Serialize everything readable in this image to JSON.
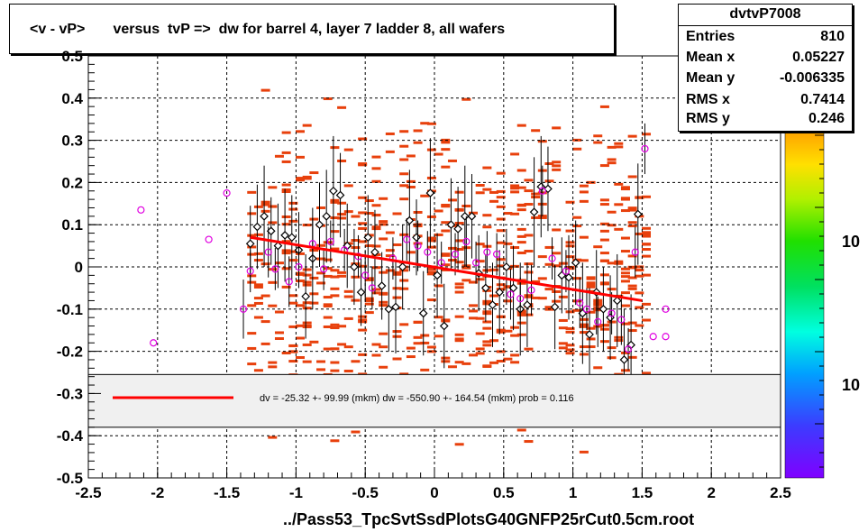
{
  "title": "<v - vP>       versus  tvP =>  dw for barrel 4, layer 7 ladder 8, all wafers",
  "stats": {
    "name": "dvtvP7008",
    "rows": [
      {
        "label": "Entries",
        "value": "810"
      },
      {
        "label": "Mean x",
        "value": "0.05227"
      },
      {
        "label": "Mean y",
        "value": "-0.006335"
      },
      {
        "label": "RMS x",
        "value": "0.7414"
      },
      {
        "label": "RMS y",
        "value": "0.246"
      }
    ]
  },
  "colors": {
    "hist": "#e8400c",
    "fit": "#ff0000",
    "profile_black": "#000000",
    "profile_magenta": "#e000e0",
    "legend_bg": "#f0f0f0"
  },
  "chart_data": {
    "type": "scatter",
    "xlabel": "../Pass53_TpcSvtSsdPlotsG40GNFP25rCut0.5cm.root",
    "ylabel": "",
    "xlim": [
      -2.5,
      2.5
    ],
    "ylim": [
      -0.5,
      0.5
    ],
    "x_ticks": [
      "-2.5",
      "-2",
      "-1.5",
      "-1",
      "-0.5",
      "0",
      "0.5",
      "1",
      "1.5",
      "2",
      "2.5"
    ],
    "y_ticks": [
      "-0.5",
      "-0.4",
      "-0.3",
      "-0.2",
      "-0.1",
      "0",
      "0.1",
      "0.2",
      "0.3",
      "0.4",
      "0.5"
    ],
    "grid": true,
    "z_labels": [
      "10",
      "10"
    ],
    "fit_line": {
      "x": [
        -1.33,
        1.5
      ],
      "y": [
        0.07,
        -0.08
      ]
    },
    "legend": {
      "text": "dv =  -25.32 +- 99.99 (mkm) dw = -550.90 +- 164.54 (mkm) prob = 0.116",
      "ylim": [
        -0.38,
        -0.255
      ]
    },
    "series": [
      {
        "name": "",
        "marker": "diamond",
        "color": "black",
        "points": [
          [
            -1.33,
            0.055,
            0.09
          ],
          [
            -1.28,
            0.095,
            0.1
          ],
          [
            -1.23,
            0.12,
            0.12
          ],
          [
            -1.18,
            0.085,
            0.08
          ],
          [
            -1.13,
            0.05,
            0.1
          ],
          [
            -1.08,
            0.075,
            0.11
          ],
          [
            -1.03,
            0.07,
            0.1
          ],
          [
            -0.98,
            0.04,
            0.09
          ],
          [
            -0.93,
            -0.07,
            0.1
          ],
          [
            -0.88,
            0.02,
            0.12
          ],
          [
            -0.83,
            0.1,
            0.1
          ],
          [
            -0.78,
            0.12,
            0.11
          ],
          [
            -0.73,
            0.18,
            0.13
          ],
          [
            -0.68,
            0.17,
            0.1
          ],
          [
            -0.63,
            0.05,
            0.1
          ],
          [
            -0.58,
            0.0,
            0.09
          ],
          [
            -0.53,
            -0.06,
            0.08
          ],
          [
            -0.48,
            0.07,
            0.1
          ],
          [
            -0.43,
            0.035,
            0.1
          ],
          [
            -0.38,
            -0.045,
            0.08
          ],
          [
            -0.33,
            -0.1,
            0.1
          ],
          [
            -0.28,
            -0.095,
            0.11
          ],
          [
            -0.23,
            0.0,
            0.1
          ],
          [
            -0.18,
            0.11,
            0.12
          ],
          [
            -0.13,
            0.07,
            0.09
          ],
          [
            -0.08,
            -0.11,
            0.1
          ],
          [
            -0.03,
            0.175,
            0.13
          ],
          [
            0.02,
            -0.02,
            0.1
          ],
          [
            0.07,
            -0.14,
            0.1
          ],
          [
            0.12,
            0.1,
            0.11
          ],
          [
            0.17,
            0.09,
            0.1
          ],
          [
            0.22,
            0.12,
            0.12
          ],
          [
            0.27,
            0.12,
            0.1
          ],
          [
            0.32,
            -0.015,
            0.09
          ],
          [
            0.37,
            -0.05,
            0.08
          ],
          [
            0.42,
            -0.09,
            0.1
          ],
          [
            0.47,
            -0.06,
            0.1
          ],
          [
            0.52,
            0.0,
            0.09
          ],
          [
            0.57,
            -0.05,
            0.1
          ],
          [
            0.62,
            -0.1,
            0.11
          ],
          [
            0.67,
            -0.09,
            0.1
          ],
          [
            0.72,
            0.13,
            0.13
          ],
          [
            0.77,
            0.19,
            0.12
          ],
          [
            0.82,
            0.185,
            0.1
          ],
          [
            0.87,
            -0.095,
            0.1
          ],
          [
            0.92,
            -0.02,
            0.09
          ],
          [
            0.97,
            -0.025,
            0.1
          ],
          [
            1.02,
            0.01,
            0.1
          ],
          [
            1.07,
            -0.11,
            0.12
          ],
          [
            1.12,
            -0.16,
            0.11
          ],
          [
            1.17,
            -0.06,
            0.1
          ],
          [
            1.22,
            -0.1,
            0.1
          ],
          [
            1.27,
            -0.12,
            0.1
          ],
          [
            1.32,
            -0.08,
            0.11
          ],
          [
            1.37,
            -0.22,
            0.12
          ],
          [
            1.42,
            -0.185,
            0.12
          ],
          [
            1.47,
            0.125,
            0.12
          ]
        ]
      },
      {
        "name": "",
        "marker": "circle",
        "color": "magenta",
        "points": [
          [
            -2.12,
            0.135,
            0
          ],
          [
            -2.03,
            -0.18,
            0
          ],
          [
            -1.63,
            0.065,
            0
          ],
          [
            -1.5,
            0.175,
            0
          ],
          [
            -1.38,
            -0.1,
            0.07
          ],
          [
            -1.33,
            -0.01,
            0.05
          ],
          [
            -1.2,
            0.035,
            0.06
          ],
          [
            -1.15,
            -0.005,
            0.05
          ],
          [
            -1.05,
            -0.035,
            0.06
          ],
          [
            -0.98,
            0.0,
            0.05
          ],
          [
            -0.88,
            0.055,
            0.06
          ],
          [
            -0.8,
            -0.005,
            0.05
          ],
          [
            -0.75,
            0.06,
            0.05
          ],
          [
            -0.65,
            0.04,
            0.05
          ],
          [
            -0.55,
            0.025,
            0.05
          ],
          [
            -0.5,
            -0.02,
            0.06
          ],
          [
            -0.45,
            -0.05,
            0.05
          ],
          [
            -0.3,
            0.02,
            0.05
          ],
          [
            -0.2,
            0.065,
            0.05
          ],
          [
            -0.12,
            0.05,
            0.06
          ],
          [
            -0.05,
            0.035,
            0.05
          ],
          [
            0.05,
            0.01,
            0.05
          ],
          [
            0.15,
            0.03,
            0.05
          ],
          [
            0.23,
            0.06,
            0.06
          ],
          [
            0.3,
            0.01,
            0.05
          ],
          [
            0.38,
            0.035,
            0.05
          ],
          [
            0.45,
            0.03,
            0.05
          ],
          [
            0.55,
            -0.065,
            0.06
          ],
          [
            0.62,
            -0.075,
            0.05
          ],
          [
            0.7,
            -0.055,
            0.06
          ],
          [
            0.78,
            0.18,
            0.06
          ],
          [
            0.85,
            0.02,
            0.05
          ],
          [
            0.95,
            -0.01,
            0.05
          ],
          [
            1.05,
            -0.085,
            0.06
          ],
          [
            1.1,
            -0.1,
            0.05
          ],
          [
            1.18,
            -0.13,
            0.06
          ],
          [
            1.28,
            -0.11,
            0.05
          ],
          [
            1.35,
            -0.125,
            0.06
          ],
          [
            1.4,
            -0.195,
            0.05
          ],
          [
            1.45,
            0.035,
            0.06
          ],
          [
            1.52,
            0.28,
            0.06
          ],
          [
            1.58,
            -0.165,
            0
          ],
          [
            1.67,
            -0.1,
            0
          ],
          [
            1.67,
            -0.165,
            0
          ]
        ]
      }
    ]
  }
}
